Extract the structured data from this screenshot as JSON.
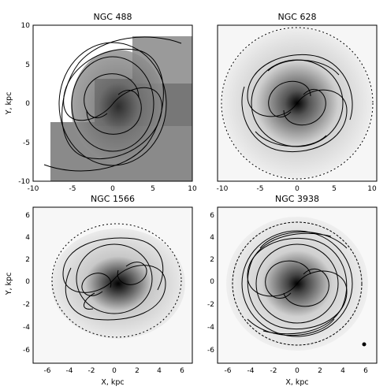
{
  "figure": {
    "panels": [
      {
        "title": "NGC 488",
        "xticks": [
          "-10",
          "-5",
          "0",
          "5",
          "10"
        ],
        "yticks": [
          "10",
          "5",
          "0",
          "-5",
          "-10"
        ],
        "ylabel": "Y, kpc",
        "xlabel": ""
      },
      {
        "title": "NGC 628",
        "xticks": [
          "-10",
          "-5",
          "0",
          "5",
          "10"
        ],
        "yticks": [],
        "ylabel": "",
        "xlabel": ""
      },
      {
        "title": "NGC 1566",
        "xticks": [
          "-6",
          "-4",
          "-2",
          "0",
          "2",
          "4",
          "6"
        ],
        "yticks": [
          "6",
          "4",
          "2",
          "0",
          "-2",
          "-4",
          "-6"
        ],
        "ylabel": "Y, kpc",
        "xlabel": "X, kpc"
      },
      {
        "title": "NGC 3938",
        "xticks": [
          "-6",
          "-4",
          "-2",
          "0",
          "2",
          "4",
          "6"
        ],
        "yticks": [
          "6",
          "4",
          "2",
          "0",
          "-2",
          "-4",
          "-6"
        ],
        "ylabel": "",
        "xlabel": "X, kpc"
      }
    ]
  }
}
